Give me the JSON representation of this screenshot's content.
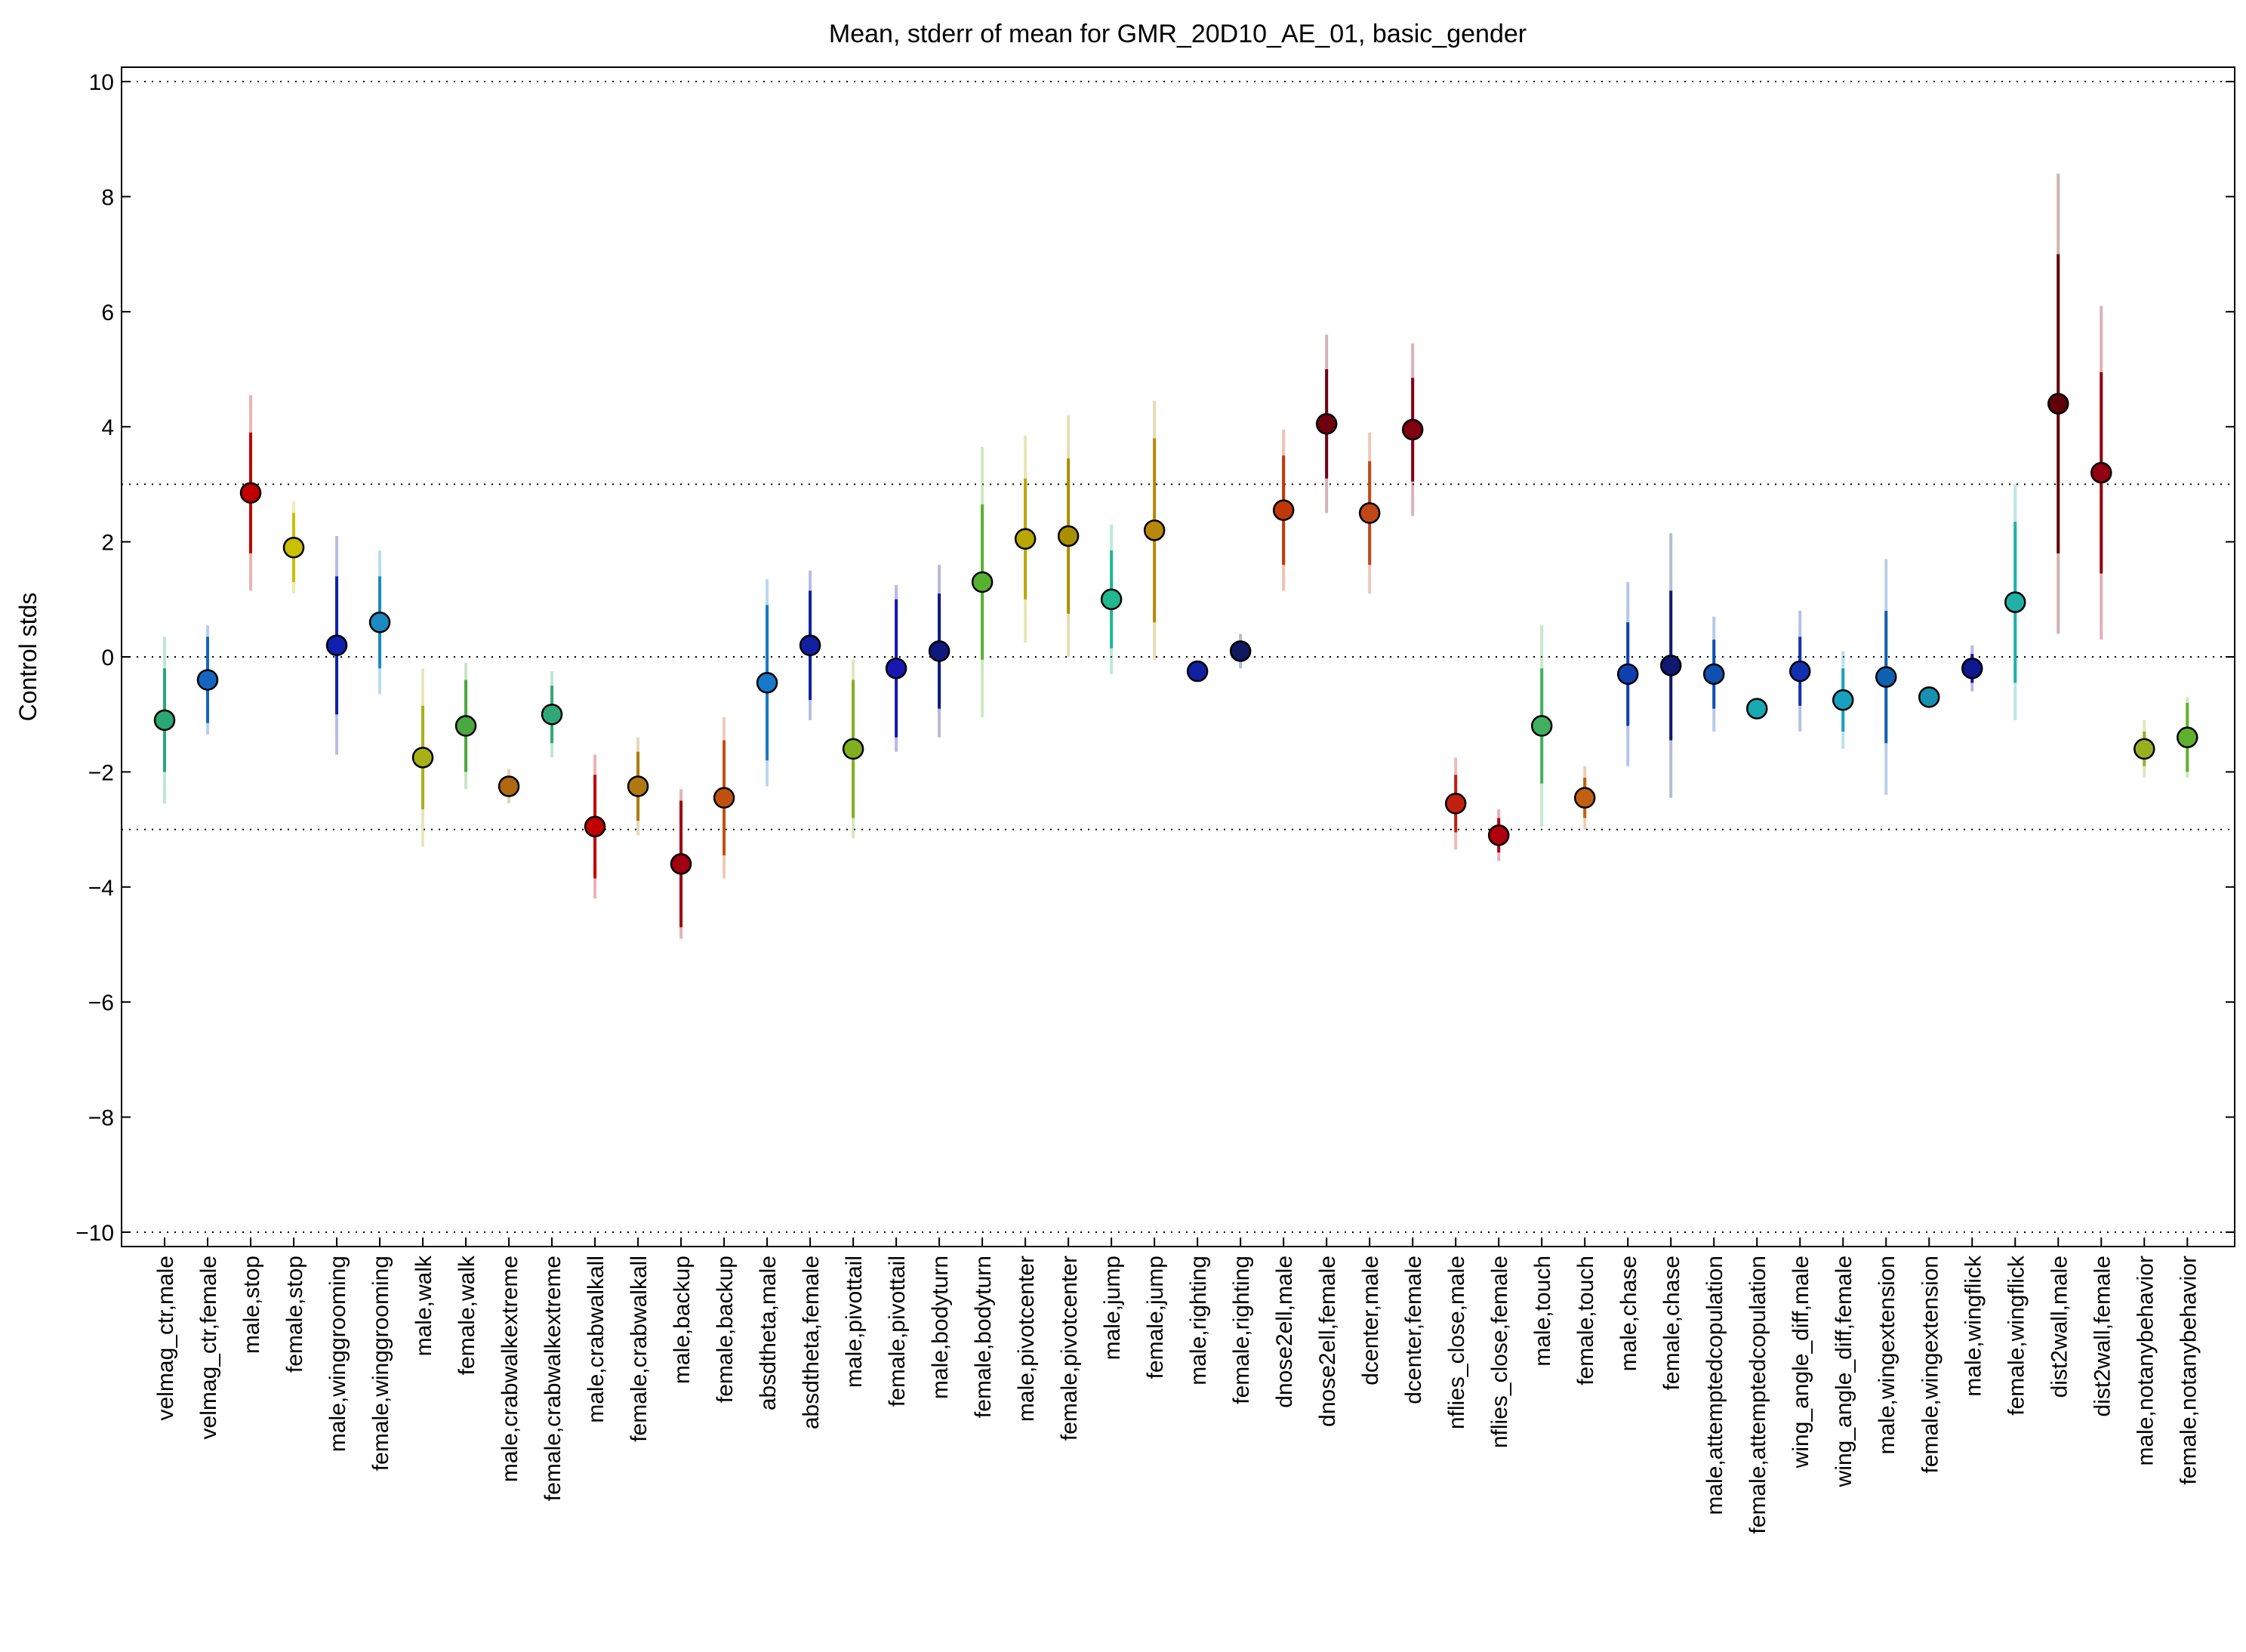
{
  "chart_data": {
    "type": "errorbar",
    "title": "Mean, stderr of mean for GMR_20D10_AE_01, basic_gender",
    "y_label": "Control stds",
    "categories": [
      "velmag_ctr,male",
      "velmag_ctr,female",
      "male,stop",
      "female,stop",
      "male,winggrooming",
      "female,winggrooming",
      "male,walk",
      "female,walk",
      "male,crabwalkextreme",
      "female,crabwalkextreme",
      "male,crabwalkall",
      "female,crabwalkall",
      "male,backup",
      "female,backup",
      "absdtheta,male",
      "absdtheta,female",
      "male,pivottail",
      "female,pivottail",
      "male,bodyturn",
      "female,bodyturn",
      "male,pivotcenter",
      "female,pivotcenter",
      "male,jump",
      "female,jump",
      "male,righting",
      "female,righting",
      "dnose2ell,male",
      "dnose2ell,female",
      "dcenter,male",
      "dcenter,female",
      "nflies_close,male",
      "nflies_close,female",
      "male,touch",
      "female,touch",
      "male,chase",
      "female,chase",
      "male,attemptedcopulation",
      "female,attemptedcopulation",
      "wing_angle_diff,male",
      "wing_angle_diff,female",
      "male,wingextension",
      "female,wingextension",
      "male,wingflick",
      "female,wingflick",
      "dist2wall,male",
      "dist2wall,female",
      "male,notanybehavior",
      "female,notanybehavior"
    ],
    "values": [
      -1.1,
      -0.4,
      2.85,
      1.9,
      0.2,
      0.6,
      -1.75,
      -1.2,
      -2.25,
      -1.0,
      -2.95,
      -2.25,
      -3.6,
      -2.45,
      -0.45,
      0.2,
      -1.6,
      -0.2,
      0.1,
      1.3,
      2.05,
      2.1,
      1.0,
      2.2,
      -0.25,
      0.1,
      2.55,
      4.05,
      2.5,
      3.95,
      -2.55,
      -3.1,
      -1.2,
      -2.45,
      -0.3,
      -0.15,
      -0.3,
      -0.9,
      -0.25,
      -0.75,
      -0.35,
      -0.7,
      -0.2,
      0.95,
      4.4,
      3.2,
      -1.6,
      -1.4
    ],
    "errors": [
      0.9,
      0.75,
      1.05,
      0.6,
      1.2,
      0.8,
      0.9,
      0.8,
      0.1,
      0.5,
      0.9,
      0.6,
      1.1,
      1.0,
      1.35,
      0.95,
      1.2,
      1.2,
      1.0,
      1.35,
      1.05,
      1.35,
      0.85,
      1.6,
      0.05,
      0.15,
      0.95,
      0.95,
      0.9,
      0.9,
      0.5,
      0.3,
      1.0,
      0.35,
      0.9,
      1.3,
      0.6,
      0.05,
      0.6,
      0.55,
      1.15,
      0.05,
      0.25,
      1.4,
      2.6,
      1.75,
      0.3,
      0.6
    ],
    "outer_errors": [
      1.45,
      0.95,
      1.7,
      0.8,
      1.9,
      1.25,
      1.55,
      1.1,
      0.3,
      0.75,
      1.25,
      0.85,
      1.3,
      1.4,
      1.8,
      1.3,
      1.55,
      1.45,
      1.5,
      2.35,
      1.8,
      2.1,
      1.3,
      2.25,
      0.1,
      0.3,
      1.4,
      1.55,
      1.4,
      1.5,
      0.8,
      0.45,
      1.75,
      0.55,
      1.6,
      2.3,
      1.0,
      0.1,
      1.05,
      0.85,
      2.05,
      0.1,
      0.4,
      2.05,
      4.0,
      2.9,
      0.5,
      0.7
    ],
    "colors": [
      "#2aa876",
      "#1565c0",
      "#c00000",
      "#c8c000",
      "#1020b0",
      "#1a8ac0",
      "#a8b018",
      "#4aa840",
      "#b06810",
      "#30a878",
      "#c00000",
      "#b07810",
      "#a00010",
      "#c05010",
      "#1878c8",
      "#1020a0",
      "#80b020",
      "#1818b0",
      "#101880",
      "#58b030",
      "#b8a800",
      "#a89000",
      "#20b890",
      "#b88808",
      "#1020a0",
      "#101860",
      "#c03808",
      "#700010",
      "#c04818",
      "#800010",
      "#c02010",
      "#b00010",
      "#40b060",
      "#c06010",
      "#1040b0",
      "#101870",
      "#1050b0",
      "#18a8b0",
      "#1030b0",
      "#18a0c0",
      "#1060b0",
      "#1890b0",
      "#101890",
      "#20b0a8",
      "#600008",
      "#900010",
      "#98b020",
      "#60b030"
    ],
    "ylim": [
      -10.25,
      10.25
    ],
    "yticks": [
      {
        "value": -10,
        "label": "−10"
      },
      {
        "value": -8,
        "label": "−8"
      },
      {
        "value": -6,
        "label": "−6"
      },
      {
        "value": -4,
        "label": "−4"
      },
      {
        "value": -2,
        "label": "−2"
      },
      0,
      2,
      4,
      6,
      8,
      10
    ],
    "hlines": [
      -10,
      -3,
      0,
      3,
      10
    ]
  }
}
